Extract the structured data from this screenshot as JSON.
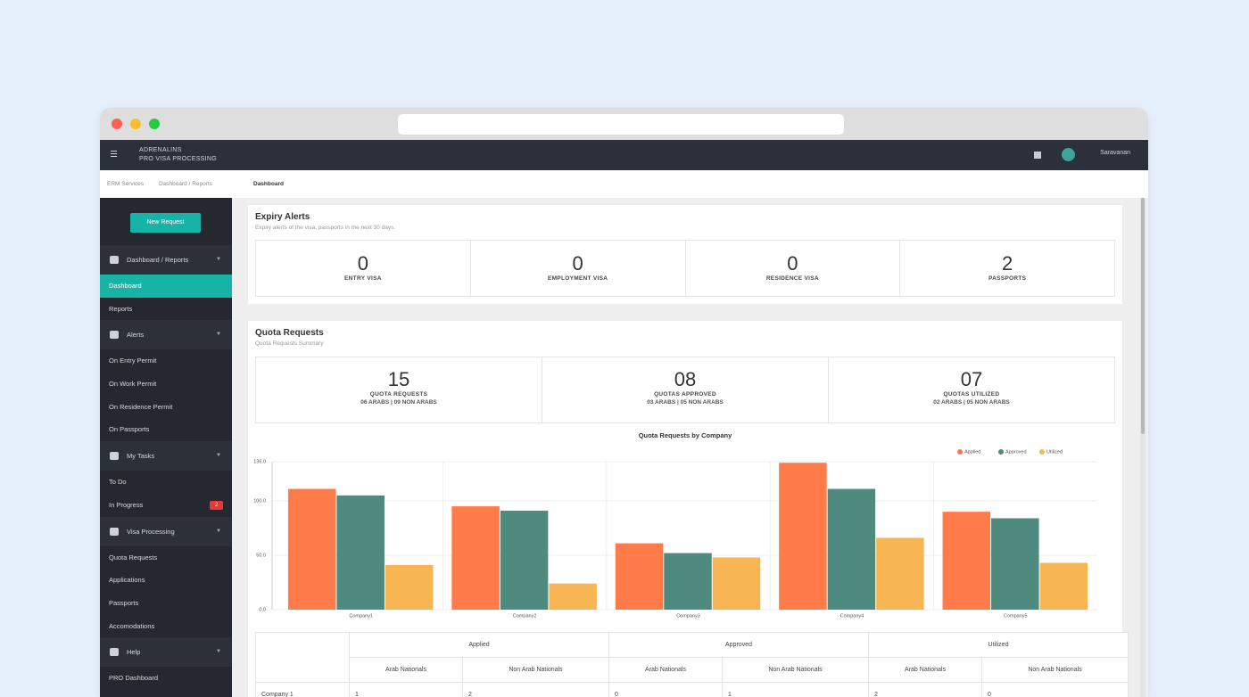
{
  "navbar": {
    "brand_line1": "ADRENALINS",
    "brand_line2": "PRO VISA PROCESSING",
    "user": "Saravanan"
  },
  "breadcrumb": [
    "ERM Services",
    "Dashboard / Reports",
    "Dashboard"
  ],
  "sidebar": {
    "button": "New Request",
    "sections": [
      {
        "title": "Dashboard / Reports",
        "items": [
          {
            "label": "Dashboard",
            "active": true
          },
          {
            "label": "Reports"
          }
        ]
      },
      {
        "title": "Alerts",
        "items": [
          {
            "label": "On Entry Permit"
          },
          {
            "label": "On Work Permit"
          },
          {
            "label": "On Residence Permit"
          },
          {
            "label": "On Passports"
          }
        ]
      },
      {
        "title": "My Tasks",
        "items": [
          {
            "label": "To Do"
          },
          {
            "label": "In Progress",
            "badge": 2
          }
        ]
      },
      {
        "title": "Visa Processing",
        "items": [
          {
            "label": "Quota Requests"
          },
          {
            "label": "Applications"
          },
          {
            "label": "Passports"
          },
          {
            "label": "Accomodations"
          }
        ]
      },
      {
        "title": "Help",
        "items": [
          {
            "label": "PRO Dashboard"
          }
        ]
      }
    ]
  },
  "expiry_alerts": {
    "title": "Expiry Alerts",
    "subtitle": "Expiry alerts of the visa, passports in the next 30 days.",
    "cards": [
      {
        "value": 0,
        "label": "ENTRY VISA"
      },
      {
        "value": 0,
        "label": "EMPLOYMENT VISA"
      },
      {
        "value": 0,
        "label": "RESIDENCE VISA"
      },
      {
        "value": 2,
        "label": "PASSPORTS"
      }
    ]
  },
  "quota_requests": {
    "title": "Quota Requests",
    "subtitle": "Quota Requests Summary",
    "cards": [
      {
        "value": "15",
        "label": "QUOTA REQUESTS",
        "detail": "06 ARABS | 09 NON ARABS"
      },
      {
        "value": "08",
        "label": "QUOTAS APPROVED",
        "detail": "03 ARABS | 05 NON ARABS"
      },
      {
        "value": "07",
        "label": "QUOTAS UTILIZED",
        "detail": "02 ARABS | 05 NON ARABS"
      }
    ]
  },
  "chart_data": {
    "type": "bar",
    "title": "Quota Requests by Company",
    "categories": [
      "Company1",
      "Company2",
      "Company3",
      "Company4",
      "Company5"
    ],
    "series": [
      {
        "name": "Applied",
        "color": "#ff7b4a",
        "values": [
          111,
          95,
          61,
          135,
          90
        ]
      },
      {
        "name": "Approved",
        "color": "#4e8a7e",
        "values": [
          105,
          91,
          52,
          111,
          84
        ]
      },
      {
        "name": "Utilized",
        "color": "#f7b553",
        "values": [
          41,
          24,
          48,
          66,
          43
        ]
      }
    ],
    "ylim": [
      0,
      136
    ],
    "yticks": [
      {
        "value": 0,
        "label": "0.0"
      },
      {
        "value": 50,
        "label": "50.0"
      },
      {
        "value": 100,
        "label": "100.0"
      },
      {
        "value": 136,
        "label": "136.0"
      }
    ],
    "grid": true,
    "legend": "top-right"
  },
  "table": {
    "groups": [
      "Applied",
      "Approved",
      "Utilized"
    ],
    "subheaders": [
      "Arab Nationals",
      "Non Arab Nationals"
    ],
    "rows": [
      [
        "Company 1",
        1,
        2,
        0,
        1,
        2,
        0
      ]
    ]
  }
}
